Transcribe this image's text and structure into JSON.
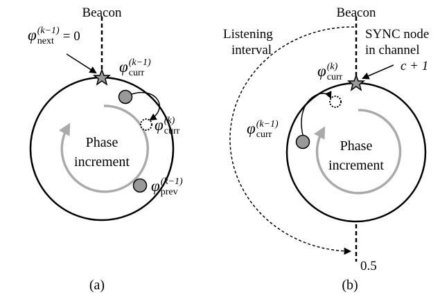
{
  "panels": [
    {
      "beacon": "Beacon",
      "caption": "(a)",
      "center_label": [
        "Phase",
        "increment"
      ],
      "labels": [
        {
          "base": "φ",
          "sub": "next",
          "sup": "(k−1)",
          "suffix": "= 0"
        },
        {
          "base": "φ",
          "sub": "curr",
          "sup": "(k−1)"
        },
        {
          "base": "φ",
          "sub": "curr",
          "sup": "(k)"
        },
        {
          "base": "φ",
          "sub": "prev",
          "sup": "(k−1)"
        }
      ]
    },
    {
      "beacon": "Beacon",
      "caption": "(b)",
      "center_label": [
        "Phase",
        "increment"
      ],
      "interval_label": [
        "Listening",
        "interval"
      ],
      "sync_label": [
        "SYNC node",
        "in channel",
        "c + 1"
      ],
      "half_mark": "0.5",
      "labels": [
        {
          "base": "φ",
          "sub": "curr",
          "sup": "(k)"
        },
        {
          "base": "φ",
          "sub": "curr",
          "sup": "(k−1)"
        }
      ]
    }
  ]
}
